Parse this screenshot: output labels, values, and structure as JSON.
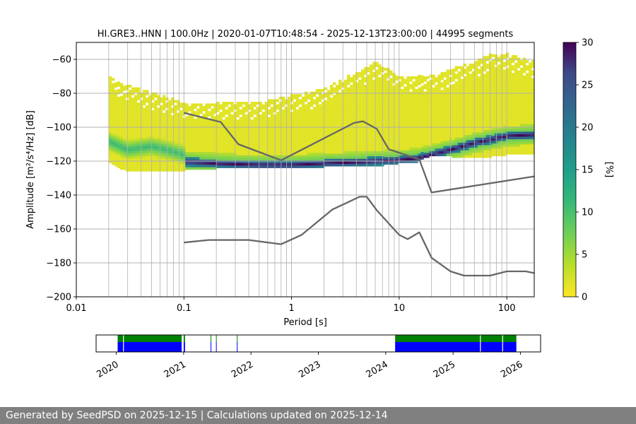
{
  "chart_data": [
    {
      "type": "heatmap",
      "title": "HI.GRE3..HNN | 100.0Hz | 2020-01-07T10:48:54 - 2025-12-13T23:00:00 | 44995 segments",
      "xlabel": "Period [s]",
      "ylabel": "Amplitude [m²/s⁴/Hz] [dB]",
      "x_scale": "log",
      "xlim": [
        0.01,
        180
      ],
      "ylim": [
        -200,
        -50
      ],
      "x_ticks": [
        0.01,
        0.1,
        1,
        10,
        100
      ],
      "x_tick_labels": [
        "0.01",
        "0.1",
        "1",
        "10",
        "100"
      ],
      "y_ticks": [
        -200,
        -180,
        -160,
        -140,
        -120,
        -100,
        -80,
        -60
      ],
      "y_tick_labels": [
        "−200",
        "−180",
        "−160",
        "−140",
        "−120",
        "−100",
        "−80",
        "−60"
      ],
      "grid": true,
      "colormap": "viridis_r",
      "colorbar": {
        "label": "[%]",
        "range": [
          0,
          30
        ],
        "ticks": [
          0,
          5,
          10,
          15,
          20,
          25,
          30
        ],
        "tick_labels": [
          "0",
          "5",
          "10",
          "15",
          "20",
          "25",
          "30"
        ]
      },
      "density_region": {
        "period_range": [
          0.02,
          180
        ],
        "upper_edge_db": [
          [
            0.02,
            -70
          ],
          [
            0.03,
            -76
          ],
          [
            0.05,
            -80
          ],
          [
            0.1,
            -86
          ],
          [
            0.2,
            -86
          ],
          [
            0.5,
            -86
          ],
          [
            1,
            -82
          ],
          [
            2,
            -78
          ],
          [
            4,
            -68
          ],
          [
            6,
            -62
          ],
          [
            10,
            -70
          ],
          [
            20,
            -70
          ],
          [
            40,
            -64
          ],
          [
            70,
            -58
          ],
          [
            100,
            -57
          ],
          [
            180,
            -62
          ]
        ],
        "lower_edge_db": [
          [
            0.02,
            -120
          ],
          [
            0.03,
            -126
          ],
          [
            0.05,
            -126
          ],
          [
            0.1,
            -125
          ],
          [
            0.2,
            -124
          ],
          [
            0.5,
            -124
          ],
          [
            1,
            -124
          ],
          [
            2,
            -123
          ],
          [
            5,
            -123
          ],
          [
            10,
            -121
          ],
          [
            15,
            -120
          ],
          [
            20,
            -116
          ],
          [
            50,
            -118
          ],
          [
            100,
            -116
          ],
          [
            180,
            -116
          ]
        ],
        "peak_ridge_db": [
          [
            0.1,
            -121
          ],
          [
            0.2,
            -122
          ],
          [
            0.5,
            -123
          ],
          [
            1,
            -123
          ],
          [
            2,
            -122
          ],
          [
            5,
            -121
          ],
          [
            10,
            -120
          ],
          [
            15,
            -119
          ],
          [
            20,
            -117
          ],
          [
            30,
            -114
          ],
          [
            50,
            -110
          ],
          [
            100,
            -106
          ],
          [
            180,
            -105
          ]
        ],
        "shoulder_db": [
          [
            0.02,
            -109
          ],
          [
            0.03,
            -114
          ],
          [
            0.05,
            -112
          ],
          [
            0.08,
            -115
          ],
          [
            0.1,
            -117
          ]
        ]
      },
      "series": [
        {
          "color": "#666666",
          "points": [
            [
              0.1,
              -91.5
            ],
            [
              0.22,
              -97
            ],
            [
              0.32,
              -110
            ],
            [
              0.8,
              -119.5
            ],
            [
              3.8,
              -97.5
            ],
            [
              4.6,
              -96.5
            ],
            [
              6.2,
              -101
            ],
            [
              8,
              -113
            ],
            [
              15.4,
              -119
            ],
            [
              20,
              -138.5
            ],
            [
              180,
              -129
            ]
          ]
        },
        {
          "color": "#666666",
          "points": [
            [
              0.1,
              -168
            ],
            [
              0.17,
              -166.5
            ],
            [
              0.4,
              -166.5
            ],
            [
              0.8,
              -169
            ],
            [
              1.24,
              -163.5
            ],
            [
              2.4,
              -148.5
            ],
            [
              4.3,
              -141
            ],
            [
              5,
              -141
            ],
            [
              6.2,
              -149
            ],
            [
              10,
              -163.5
            ],
            [
              12,
              -166
            ],
            [
              15.4,
              -162
            ],
            [
              20,
              -177
            ],
            [
              30,
              -185
            ],
            [
              40,
              -187.5
            ],
            [
              70,
              -187.5
            ],
            [
              100,
              -185
            ],
            [
              150,
              -185
            ],
            [
              180,
              -186
            ]
          ]
        }
      ]
    },
    {
      "type": "timeline",
      "x_tick_labels": [
        "2020",
        "2021",
        "2022",
        "2023",
        "2024",
        "2025",
        "2026"
      ],
      "x_ticks": [
        2020,
        2021,
        2022,
        2023,
        2024,
        2025,
        2026
      ],
      "xlim": [
        2019.7,
        2026.3
      ],
      "colors": {
        "available": "#008000",
        "used": "#0000ff"
      },
      "blocks": [
        [
          2020.02,
          2020.97
        ],
        [
          2021.0,
          2021.02
        ],
        [
          2021.4,
          2021.41
        ],
        [
          2021.48,
          2021.49
        ],
        [
          2021.79,
          2021.8
        ],
        [
          2024.14,
          2025.94
        ]
      ],
      "gaps": [
        2020.1,
        2021.55,
        2025.4,
        2025.73
      ]
    }
  ],
  "footer": {
    "text": "Generated by SeedPSD on 2025-12-15 | Calculations updated on 2025-12-14"
  }
}
